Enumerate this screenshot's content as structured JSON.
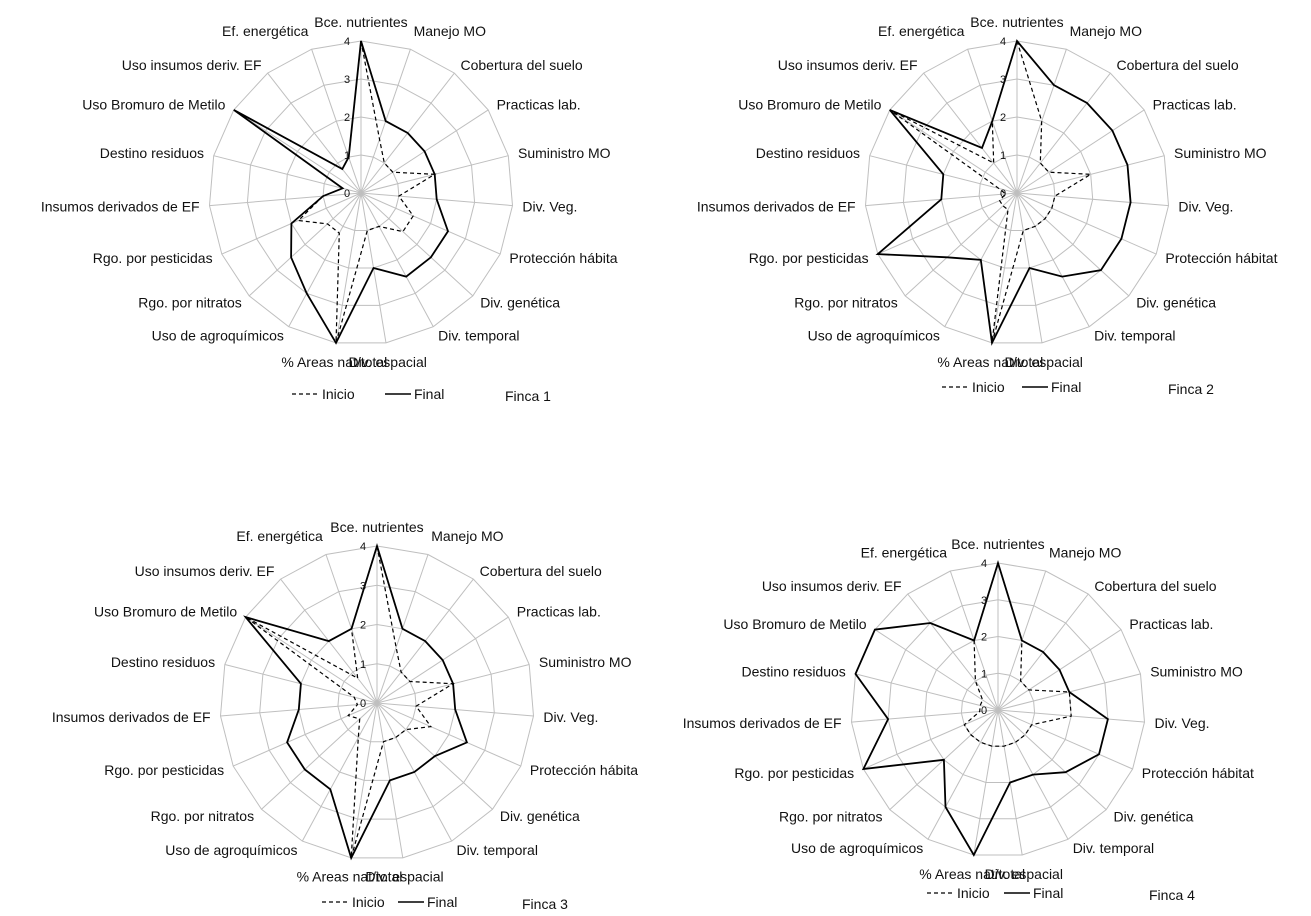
{
  "axes": [
    "Bce. nutrientes",
    "Manejo  MO",
    "Cobertura del suelo",
    "Practicas lab.",
    "Suministro MO",
    "Div. Veg.",
    "Protección hábitat",
    "Div. genética",
    "Div. temporal",
    "Div. espacial",
    "% Areas nat/total",
    "Uso de agroquímicos",
    "Rgo. por nitratos",
    "Rgo. por pesticidas",
    "Insumos derivados de EF",
    "Destino residuos",
    "Uso Bromuro de Metilo",
    "Uso insumos deriv. EF",
    "Ef. energética"
  ],
  "legend": {
    "inicio": "Inicio",
    "final": "Final"
  },
  "colors": {
    "lines": "#000000",
    "grid": "#bfbfbf"
  },
  "chart_data": [
    {
      "type": "radar",
      "title": "Finca 1",
      "axis_labels": [
        "Bce. nutrientes",
        "Manejo  MO",
        "Cobertura del suelo",
        "Practicas lab.",
        "Suministro MO",
        "Div. Veg.",
        "Protección hábita",
        "Div. genética",
        "Div. temporal",
        "Div. espacial",
        "% Areas nat/total",
        "Uso de agroquímicos",
        "Rgo. por nitratos",
        "Rgo. por pesticidas",
        "Insumos derivados de EF",
        "Destino residuos",
        "Uso Bromuro de Metilo",
        "Uso insumos deriv. EF",
        "Ef. energética"
      ],
      "rlim": [
        0,
        4
      ],
      "ticks": [
        0,
        1,
        2,
        3,
        4
      ],
      "series": [
        {
          "name": "Inicio",
          "style": "dashed",
          "values": [
            4,
            1.5,
            1,
            1,
            2,
            1,
            1.5,
            1.5,
            1,
            1,
            4,
            1.2,
            1.2,
            1.8,
            1,
            0.5,
            4,
            0.8,
            1
          ]
        },
        {
          "name": "Final",
          "style": "solid",
          "values": [
            4,
            2,
            2,
            2,
            2,
            2,
            2.5,
            2.5,
            2.5,
            2,
            4,
            3,
            2.5,
            2,
            1,
            0.5,
            4,
            0.8,
            1
          ]
        }
      ]
    },
    {
      "type": "radar",
      "title": "Finca 2",
      "axis_labels": [
        "Bce. nutrientes",
        "Manejo  MO",
        "Cobertura del suelo",
        "Practicas lab.",
        "Suministro MO",
        "Div. Veg.",
        "Protección hábitat",
        "Div. genética",
        "Div. temporal",
        "Div. espacial",
        "% Areas nat/total",
        "Uso de agroquímicos",
        "Rgo. por nitratos",
        "Rgo. por pesticidas",
        "Insumos derivados de EF",
        "Destino residuos",
        "Uso Bromuro de Metilo",
        "Uso insumos deriv. EF",
        "Ef. energética"
      ],
      "rlim": [
        0,
        4
      ],
      "ticks": [
        0,
        1,
        2,
        3,
        4
      ],
      "series": [
        {
          "name": "Inicio",
          "style": "dashed",
          "values": [
            4,
            2,
            1,
            1,
            2,
            1,
            1,
            1,
            1,
            1,
            4,
            0.5,
            0.5,
            0.5,
            0.3,
            0.5,
            4,
            1,
            2
          ]
        },
        {
          "name": "Final",
          "style": "solid",
          "values": [
            4,
            3,
            3,
            3,
            3,
            3,
            3,
            3,
            2.5,
            2,
            4,
            2,
            2.5,
            4,
            2,
            2,
            4,
            1.5,
            2
          ]
        }
      ]
    },
    {
      "type": "radar",
      "title": "Finca 3",
      "axis_labels": [
        "Bce. nutrientes",
        "Manejo  MO",
        "Cobertura del suelo",
        "Practicas lab.",
        "Suministro MO",
        "Div. Veg.",
        "Protección hábita",
        "Div. genética",
        "Div. temporal",
        "Div. espacial",
        "% Areas nat/total",
        "Uso de agroquímicos",
        "Rgo. por nitratos",
        "Rgo. por pesticidas",
        "Insumos derivados de EF",
        "Destino residuos",
        "Uso Bromuro de Metilo",
        "Uso insumos deriv. EF",
        "Ef. energética"
      ],
      "rlim": [
        0,
        4
      ],
      "ticks": [
        0,
        1,
        2,
        3,
        4
      ],
      "series": [
        {
          "name": "Inicio",
          "style": "dashed",
          "values": [
            4,
            1.5,
            1,
            1,
            2,
            1,
            1.5,
            1,
            1,
            1,
            4,
            1,
            0.6,
            0.8,
            0.5,
            0.6,
            4,
            0.8,
            2
          ]
        },
        {
          "name": "Final",
          "style": "solid",
          "values": [
            4,
            2,
            2,
            2,
            2,
            2,
            2.5,
            2,
            2,
            2,
            4,
            2.5,
            2.5,
            2.5,
            2,
            2,
            4,
            2,
            2
          ]
        }
      ]
    },
    {
      "type": "radar",
      "title": "Finca 4",
      "axis_labels": [
        "Bce. nutrientes",
        "Manejo  MO",
        "Cobertura del suelo",
        "Practicas lab.",
        "Suministro MO",
        "Div. Veg.",
        "Protección hábitat",
        "Div. genética",
        "Div. temporal",
        "Div. espacial",
        "% Areas nat/total",
        "Uso de agroquímicos",
        "Rgo. por nitratos",
        "Rgo. por pesticidas",
        "Insumos derivados de EF",
        "Destino residuos",
        "Uso Bromuro de Metilo",
        "Uso insumos deriv. EF",
        "Ef. energética"
      ],
      "rlim": [
        0,
        4
      ],
      "ticks": [
        0,
        1,
        2,
        3,
        4
      ],
      "series": [
        {
          "name": "Inicio",
          "style": "dashed",
          "values": [
            4,
            2,
            1,
            1,
            2,
            2,
            1,
            1,
            1,
            1,
            1,
            1,
            1,
            1,
            0.5,
            0.5,
            0.5,
            1,
            2
          ]
        },
        {
          "name": "Final",
          "style": "solid",
          "values": [
            4,
            2,
            2,
            2,
            2,
            3,
            3,
            2.5,
            2,
            2,
            4,
            3,
            2,
            4,
            3,
            4,
            4,
            3,
            2
          ]
        }
      ]
    }
  ]
}
